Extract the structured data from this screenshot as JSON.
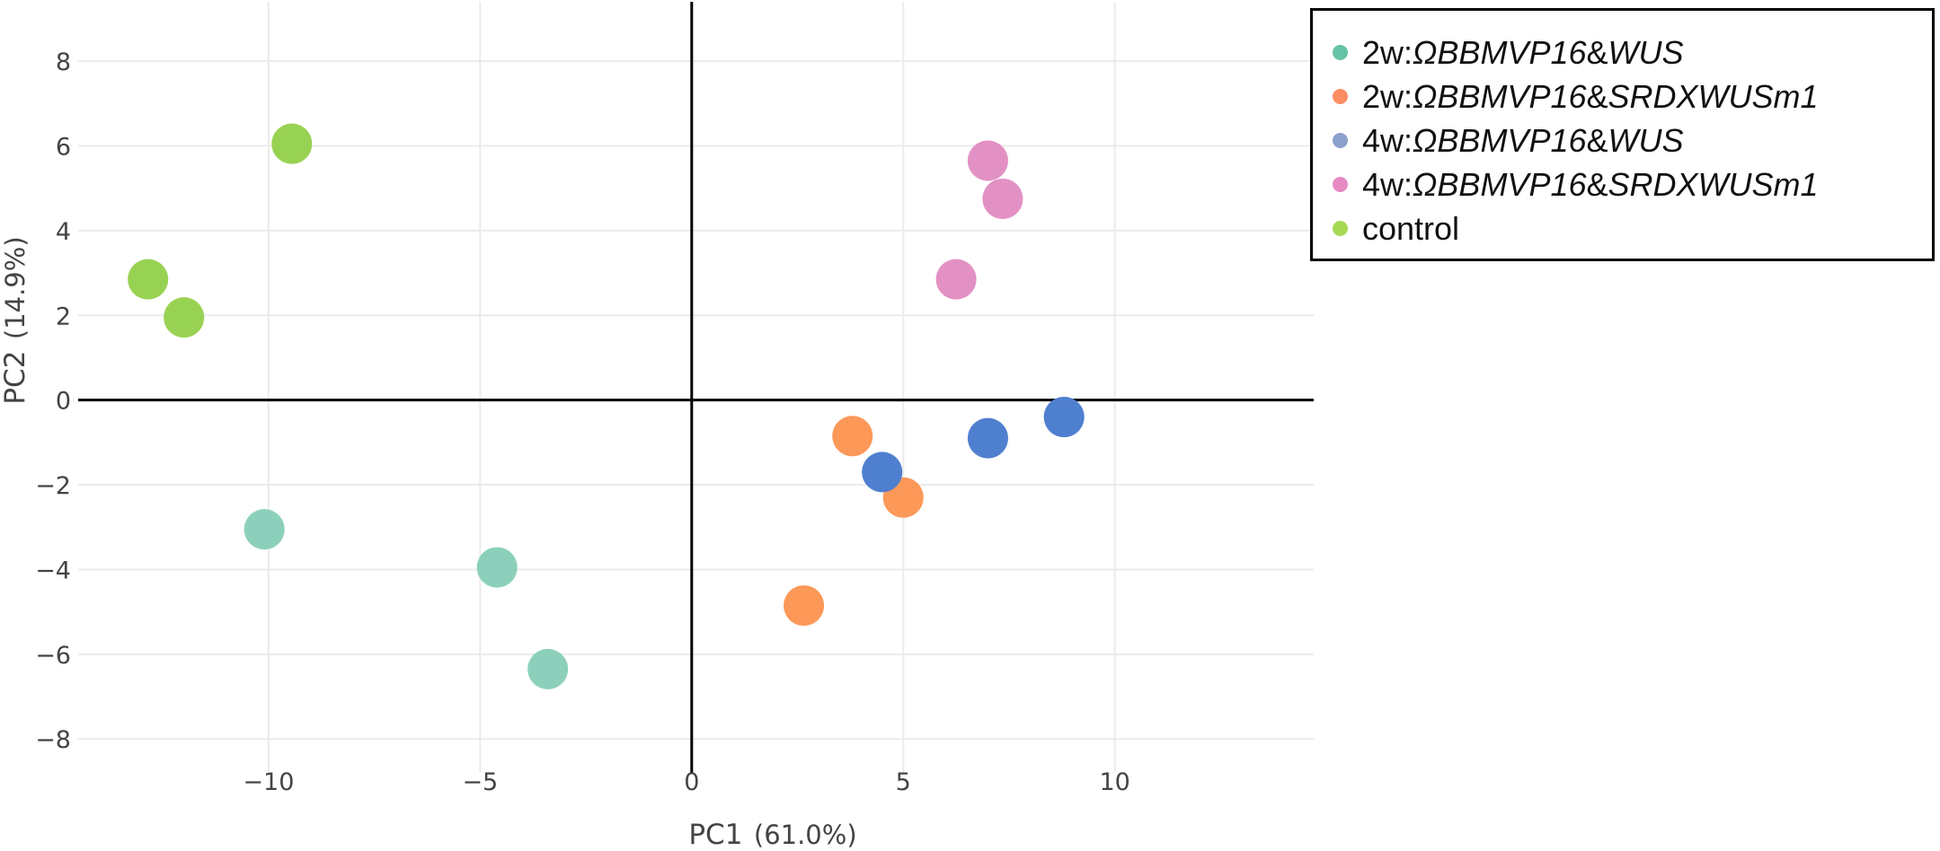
{
  "chart_data": {
    "type": "scatter",
    "title": "",
    "xlabel": "PC1",
    "xlabel_unit": "(61.0%)",
    "ylabel": "PC2",
    "ylabel_unit": "(14.9%)",
    "xlim": [
      -14.5,
      14.7
    ],
    "ylim": [
      -8.8,
      9.4
    ],
    "x_ticks": [
      -10,
      -5,
      0,
      5,
      10
    ],
    "x_tick_labels": [
      "−10",
      "−5",
      "0",
      "5",
      "10"
    ],
    "y_ticks": [
      -8,
      -6,
      -4,
      -2,
      0,
      2,
      4,
      6,
      8
    ],
    "y_tick_labels": [
      "−8",
      "−6",
      "−4",
      "−2",
      "0",
      "2",
      "4",
      "6",
      "8"
    ],
    "grid": true,
    "legend_position": "top-right",
    "series": [
      {
        "name": "2w:ΩBBMVP16&WUS",
        "name_parts": [
          {
            "text": "2w:",
            "italic": false
          },
          {
            "text": "ΩBBMVP16",
            "italic": true
          },
          {
            "text": "&",
            "italic": false
          },
          {
            "text": "WUS",
            "italic": true
          }
        ],
        "legend_color": "#66c2a5",
        "color": "#8cd0bb",
        "points": [
          [
            -10.1,
            -3.05
          ],
          [
            -4.6,
            -3.95
          ],
          [
            -3.4,
            -6.35
          ]
        ]
      },
      {
        "name": "2w:ΩBBMVP16&SRDXWUSm1",
        "name_parts": [
          {
            "text": "2w:",
            "italic": false
          },
          {
            "text": "ΩBBMVP16",
            "italic": true
          },
          {
            "text": "&",
            "italic": false
          },
          {
            "text": "SRDXWUSm1",
            "italic": true
          }
        ],
        "legend_color": "#fc8d62",
        "color": "#fc9858",
        "points": [
          [
            3.8,
            -0.85
          ],
          [
            5.0,
            -2.3
          ],
          [
            2.65,
            -4.85
          ]
        ]
      },
      {
        "name": "4w:ΩBBMVP16&WUS",
        "name_parts": [
          {
            "text": "4w:",
            "italic": false
          },
          {
            "text": "ΩBBMVP16",
            "italic": true
          },
          {
            "text": "&",
            "italic": false
          },
          {
            "text": "WUS",
            "italic": true
          }
        ],
        "legend_color": "#8da0cb",
        "color": "#4f7fcf",
        "points": [
          [
            8.8,
            -0.4
          ],
          [
            7.0,
            -0.9
          ],
          [
            4.5,
            -1.7
          ]
        ]
      },
      {
        "name": "4w:ΩBBMVP16&SRDXWUSm1",
        "name_parts": [
          {
            "text": "4w:",
            "italic": false
          },
          {
            "text": "ΩBBMVP16",
            "italic": true
          },
          {
            "text": "&",
            "italic": false
          },
          {
            "text": "SRDXWUSm1",
            "italic": true
          }
        ],
        "legend_color": "#e78ac3",
        "color": "#e391c4",
        "points": [
          [
            7.0,
            5.65
          ],
          [
            7.35,
            4.75
          ],
          [
            6.25,
            2.85
          ]
        ]
      },
      {
        "name": "control",
        "name_parts": [
          {
            "text": "control",
            "italic": false
          }
        ],
        "legend_color": "#a6d854",
        "color": "#98d253",
        "points": [
          [
            -9.45,
            6.05
          ],
          [
            -12.85,
            2.85
          ],
          [
            -12.0,
            1.95
          ]
        ]
      }
    ]
  }
}
